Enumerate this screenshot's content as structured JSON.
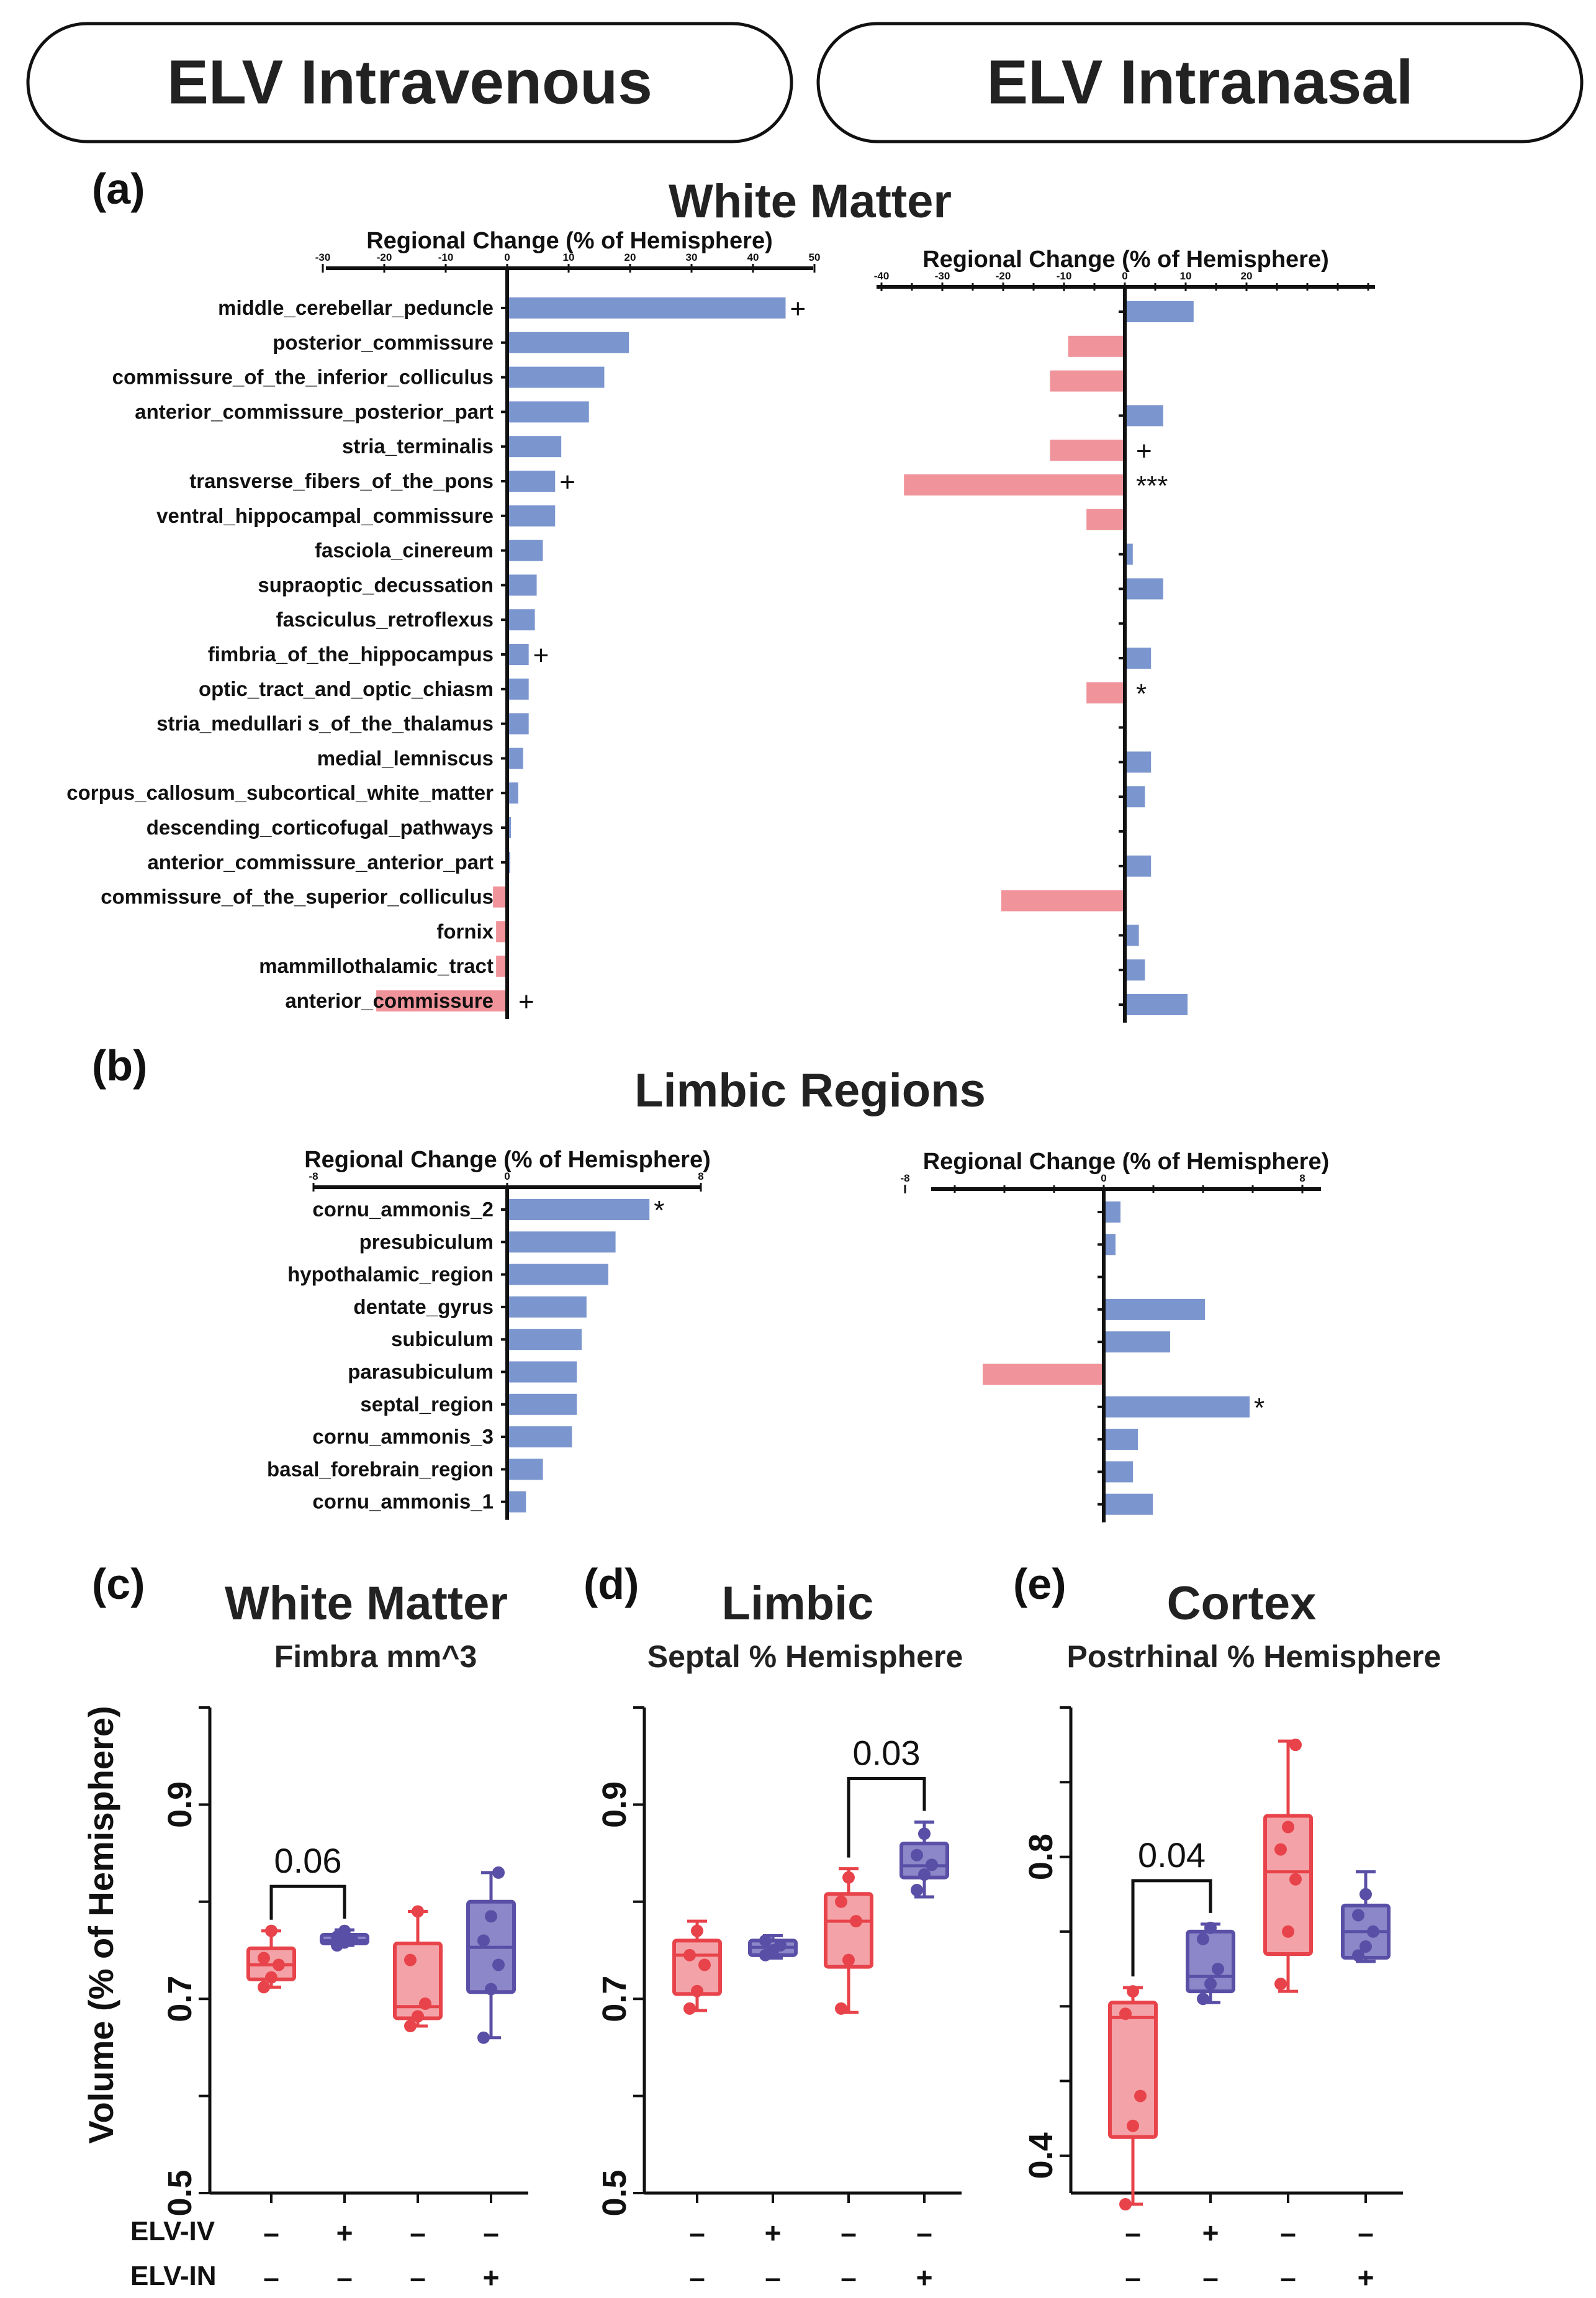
{
  "headers": {
    "left": "ELV Intravenous",
    "right": "ELV Intranasal"
  },
  "panel_letters": {
    "a": "(a)",
    "b": "(b)",
    "c": "(c)",
    "d": "(d)",
    "e": "(e)"
  },
  "panel_titles": {
    "a": "White Matter",
    "b": "Limbic Regions",
    "c": "White Matter",
    "d": "Limbic",
    "e": "Cortex"
  },
  "box_subtitles": {
    "c": "Fimbra mm^3",
    "d": "Septal % Hemisphere",
    "e": "Postrhinal % Hemisphere"
  },
  "y_axis_label": "Volume (% of Hemisphere)",
  "group_labels": {
    "row1": "ELV-IV",
    "row2": "ELV-IN"
  },
  "group_symbols": {
    "row1": [
      "–",
      "+",
      "–",
      "–"
    ],
    "row2": [
      "–",
      "–",
      "–",
      "+"
    ]
  },
  "colors": {
    "positive": "#7b96cf",
    "negative": "#f0939a",
    "red": "#e8434a",
    "red_fill": "#f3a3a8",
    "blue": "#5a4fa6",
    "blue_fill": "#8c87c8"
  },
  "chart_data": [
    {
      "type": "bar",
      "orientation": "horizontal",
      "panel": "a-left",
      "xlabel": "Regional Change (% of Hemisphere)",
      "xlim": [
        -30,
        50
      ],
      "xticks": [
        "-30",
        "-20",
        "-10",
        "0",
        "10",
        "20",
        "30",
        "40",
        "50"
      ],
      "categories": [
        "middle_cerebellar_peduncle",
        "posterior_commissure",
        "commissure_of_the_inferior_colliculus",
        "anterior_commissure_posterior_part",
        "stria_terminalis",
        "transverse_fibers_of_the_pons",
        "ventral_hippocampal_commissure",
        "fasciola_cinereum",
        "supraoptic_decussation",
        "fasciculus_retroflexus",
        "fimbria_of_the_hippocampus",
        "optic_tract_and_optic_chiasm",
        "stria_medullari s_of_the_thalamus",
        "medial_lemniscus",
        "corpus_callosum_subcortical_white_matter",
        "descending_corticofugal_pathways",
        "anterior_commissure_anterior_part",
        "commissure_of_the_superior_colliculus",
        "fornix",
        "mammillothalamic_tract",
        "anterior_commissure"
      ],
      "values": [
        45,
        19.5,
        15.5,
        13,
        8.5,
        7.5,
        7.5,
        5.5,
        4.5,
        4.2,
        3.2,
        3.2,
        3.2,
        2.3,
        1.5,
        0.3,
        0.2,
        -2,
        -1.5,
        -1.5,
        -21
      ],
      "annotations": [
        "+",
        "",
        "",
        "",
        "",
        "+",
        "",
        "",
        "",
        "",
        "+",
        "",
        "",
        "",
        "",
        "",
        "",
        "",
        "",
        "",
        "+"
      ]
    },
    {
      "type": "bar",
      "orientation": "horizontal",
      "panel": "a-right",
      "xlabel": "Regional Change (% of Hemisphere)",
      "xlim": [
        -40,
        40
      ],
      "xticks": [
        "-40",
        "-30",
        "-20",
        "-10",
        "0",
        "10",
        "20"
      ],
      "categories": [
        "middle_cerebellar_peduncle",
        "posterior_commissure",
        "commissure_of_the_inferior_colliculus",
        "anterior_commissure_posterior_part",
        "stria_terminalis",
        "transverse_fibers_of_the_pons",
        "ventral_hippocampal_commissure",
        "fasciola_cinereum",
        "supraoptic_decussation",
        "fasciculus_retroflexus",
        "fimbria_of_the_hippocampus",
        "optic_tract_and_optic_chiasm",
        "stria_medullari s_of_the_thalamus",
        "medial_lemniscus",
        "corpus_callosum_subcortical_white_matter",
        "descending_corticofugal_pathways",
        "anterior_commissure_anterior_part",
        "commissure_of_the_superior_colliculus",
        "fornix",
        "mammillothalamic_tract",
        "anterior_commissure"
      ],
      "values": [
        11,
        -9,
        -12,
        6,
        -12,
        -36,
        -6,
        1,
        6,
        0,
        4,
        -6,
        0,
        4,
        3,
        0,
        4,
        -20,
        2,
        3,
        10
      ],
      "annotations": [
        "",
        "",
        "",
        "",
        "+",
        "***",
        "",
        "",
        "",
        "",
        "",
        "*",
        "",
        "",
        "",
        "",
        "",
        "",
        "",
        "",
        ""
      ]
    },
    {
      "type": "bar",
      "orientation": "horizontal",
      "panel": "b-left",
      "xlabel": "Regional Change (% of Hemisphere)",
      "xlim": [
        -8,
        8
      ],
      "xticks": [
        "-8",
        "0",
        "8"
      ],
      "categories": [
        "cornu_ammonis_2",
        "presubiculum",
        "hypothalamic_region",
        "dentate_gyrus",
        "subiculum",
        "parasubiculum",
        "septal_region",
        "cornu_ammonis_3",
        "basal_forebrain_region",
        "cornu_ammonis_1"
      ],
      "values": [
        5.8,
        4.4,
        4.1,
        3.2,
        3.0,
        2.8,
        2.8,
        2.6,
        1.4,
        0.7
      ],
      "annotations": [
        "*",
        "",
        "",
        "",
        "",
        "",
        "",
        "",
        "",
        ""
      ]
    },
    {
      "type": "bar",
      "orientation": "horizontal",
      "panel": "b-right",
      "xlabel": "Regional Change (% of Hemisphere)",
      "xlim": [
        -8,
        8
      ],
      "xticks": [
        "-8",
        "0",
        "8"
      ],
      "categories": [
        "cornu_ammonis_2",
        "presubiculum",
        "hypothalamic_region",
        "dentate_gyrus",
        "subiculum",
        "parasubiculum",
        "septal_region",
        "cornu_ammonis_3",
        "basal_forebrain_region",
        "cornu_ammonis_1"
      ],
      "values": [
        0.6,
        0.4,
        0,
        4.0,
        2.6,
        -4.8,
        5.8,
        1.3,
        1.1,
        1.9
      ],
      "annotations": [
        "",
        "",
        "",
        "",
        "",
        "",
        "*",
        "",
        "",
        ""
      ]
    },
    {
      "type": "box",
      "panel": "c",
      "title": "White Matter",
      "subtitle": "Fimbra mm^3",
      "ylabel": "Volume (% of Hemisphere)",
      "ylim": [
        0.5,
        1.0
      ],
      "yticks": [
        "0.5",
        "0.7",
        "0.9"
      ],
      "comparison": {
        "groups": [
          0,
          1
        ],
        "label": "0.06"
      },
      "groups": [
        {
          "color": "red",
          "q1": 0.72,
          "median": 0.735,
          "q3": 0.752,
          "min": 0.712,
          "max": 0.77,
          "points": [
            0.712,
            0.722,
            0.735,
            0.742,
            0.77
          ]
        },
        {
          "color": "blue",
          "q1": 0.757,
          "median": 0.76,
          "q3": 0.766,
          "min": 0.755,
          "max": 0.771,
          "points": [
            0.755,
            0.758,
            0.761,
            0.764,
            0.77
          ]
        },
        {
          "color": "red",
          "q1": 0.68,
          "median": 0.692,
          "q3": 0.757,
          "min": 0.672,
          "max": 0.79,
          "points": [
            0.672,
            0.682,
            0.695,
            0.74,
            0.79
          ]
        },
        {
          "color": "blue",
          "q1": 0.707,
          "median": 0.753,
          "q3": 0.8,
          "min": 0.66,
          "max": 0.83,
          "points": [
            0.66,
            0.71,
            0.735,
            0.76,
            0.785,
            0.83
          ]
        }
      ]
    },
    {
      "type": "box",
      "panel": "d",
      "title": "Limbic",
      "subtitle": "Septal % Hemisphere",
      "ylim": [
        0.5,
        1.0
      ],
      "yticks": [
        "0.5",
        "0.7",
        "0.9"
      ],
      "comparison": {
        "groups": [
          2,
          3
        ],
        "label": "0.03"
      },
      "groups": [
        {
          "color": "red",
          "q1": 0.705,
          "median": 0.745,
          "q3": 0.76,
          "min": 0.688,
          "max": 0.78,
          "points": [
            0.69,
            0.708,
            0.735,
            0.745,
            0.77
          ]
        },
        {
          "color": "blue",
          "q1": 0.745,
          "median": 0.753,
          "q3": 0.76,
          "min": 0.742,
          "max": 0.765,
          "points": [
            0.745,
            0.75,
            0.755,
            0.76
          ]
        },
        {
          "color": "red",
          "q1": 0.733,
          "median": 0.78,
          "q3": 0.808,
          "min": 0.686,
          "max": 0.834,
          "points": [
            0.69,
            0.74,
            0.78,
            0.8,
            0.825
          ]
        },
        {
          "color": "blue",
          "q1": 0.825,
          "median": 0.837,
          "q3": 0.86,
          "min": 0.805,
          "max": 0.882,
          "points": [
            0.812,
            0.828,
            0.838,
            0.848,
            0.87
          ]
        }
      ]
    },
    {
      "type": "box",
      "panel": "e",
      "title": "Cortex",
      "subtitle": "Postrhinal % Hemisphere",
      "ylim": [
        0.35,
        1.0
      ],
      "yticks": [
        "0.4",
        "0.8"
      ],
      "comparison": {
        "groups": [
          0,
          1
        ],
        "label": "0.04"
      },
      "groups": [
        {
          "color": "red",
          "q1": 0.425,
          "median": 0.585,
          "q3": 0.605,
          "min": 0.335,
          "max": 0.625,
          "points": [
            0.335,
            0.44,
            0.48,
            0.59,
            0.62
          ]
        },
        {
          "color": "blue",
          "q1": 0.62,
          "median": 0.64,
          "q3": 0.7,
          "min": 0.605,
          "max": 0.71,
          "points": [
            0.61,
            0.63,
            0.65,
            0.69,
            0.705
          ]
        },
        {
          "color": "red",
          "q1": 0.67,
          "median": 0.78,
          "q3": 0.855,
          "min": 0.62,
          "max": 0.955,
          "points": [
            0.63,
            0.7,
            0.77,
            0.81,
            0.84,
            0.95
          ]
        },
        {
          "color": "blue",
          "q1": 0.665,
          "median": 0.7,
          "q3": 0.735,
          "min": 0.66,
          "max": 0.78,
          "points": [
            0.668,
            0.68,
            0.7,
            0.722,
            0.75
          ]
        }
      ]
    }
  ]
}
